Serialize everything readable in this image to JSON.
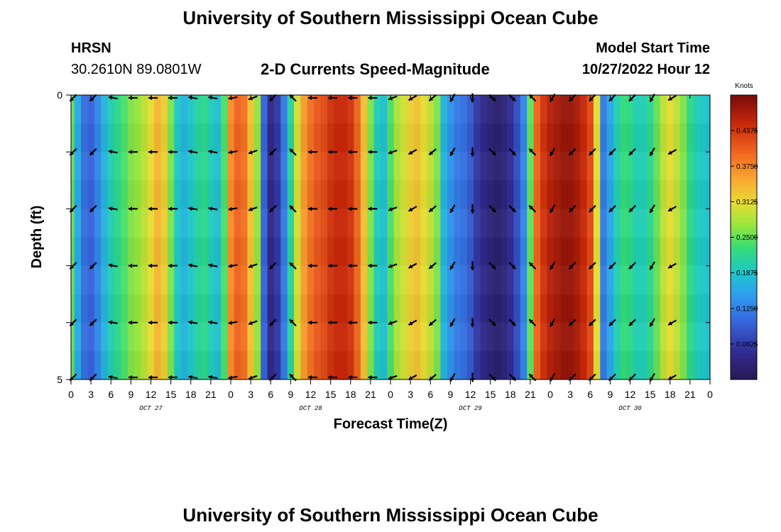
{
  "header": {
    "title": "University of Southern Mississippi Ocean Cube",
    "station": "HRSN",
    "coordinates": "30.2610N  89.0801W",
    "subtitle": "2-D Currents Speed-Magnitude",
    "model_start_label": "Model Start Time",
    "model_start_value": "10/27/2022 Hour 12"
  },
  "footer": {
    "title": "University of Southern Mississippi Ocean Cube"
  },
  "chart_data": {
    "type": "heatmap",
    "title": "2-D Currents Speed-Magnitude",
    "xlabel": "Forecast Time(Z)",
    "ylabel": "Depth (ft)",
    "units": "Knots",
    "x": [
      0,
      3,
      6,
      9,
      12,
      15,
      18,
      21,
      24,
      27,
      30,
      33,
      36,
      39,
      42,
      45,
      48,
      51,
      54,
      57,
      60,
      63,
      66,
      69,
      72,
      75,
      78,
      81,
      84,
      87,
      90,
      93,
      96
    ],
    "xtick_labels": [
      "0",
      "3",
      "6",
      "9",
      "12",
      "15",
      "18",
      "21",
      "0",
      "3",
      "6",
      "9",
      "12",
      "15",
      "18",
      "21",
      "0",
      "3",
      "6",
      "9",
      "12",
      "15",
      "18",
      "21",
      "0",
      "3",
      "6",
      "9",
      "12",
      "15",
      "18",
      "21",
      "0"
    ],
    "day_labels": [
      {
        "label": "OCT 27",
        "x_hours": 12
      },
      {
        "label": "OCT 28",
        "x_hours": 36
      },
      {
        "label": "OCT 29",
        "x_hours": 60
      },
      {
        "label": "OCT 30",
        "x_hours": 84
      }
    ],
    "ylim": [
      0,
      5
    ],
    "ytick_labels": [
      "0",
      "5"
    ],
    "colorbar": {
      "label": "Knots",
      "range": [
        0.0,
        0.5
      ],
      "ticks": [
        "0.0625",
        "0.1250",
        "0.1875",
        "0.2500",
        "0.3125",
        "0.3750",
        "0.4375"
      ]
    },
    "speed_profile_hours": [
      0,
      1,
      2,
      3,
      4,
      5,
      6,
      7,
      8,
      9,
      10,
      11,
      12,
      13,
      14,
      15,
      16,
      17,
      18,
      19,
      20,
      21,
      22,
      23,
      24,
      25,
      26,
      27,
      28,
      29,
      30,
      31,
      32,
      33,
      34,
      35,
      36,
      37,
      38,
      39,
      40,
      41,
      42,
      43,
      44,
      45,
      46,
      47,
      48,
      49,
      50,
      51,
      52,
      53,
      54,
      55,
      56,
      57,
      58,
      59,
      60,
      61,
      62,
      63,
      64,
      65,
      66,
      67,
      68,
      69,
      70,
      71,
      72,
      73,
      74,
      75,
      76,
      77,
      78,
      79,
      80,
      81,
      82,
      83,
      84,
      85,
      86,
      87,
      88,
      89,
      90,
      91,
      92,
      93,
      94,
      95,
      96
    ],
    "speed_profile_knots": [
      0.25,
      0.16,
      0.11,
      0.1,
      0.13,
      0.17,
      0.2,
      0.22,
      0.24,
      0.26,
      0.27,
      0.29,
      0.31,
      0.34,
      0.32,
      0.26,
      0.19,
      0.17,
      0.19,
      0.21,
      0.22,
      0.2,
      0.18,
      0.24,
      0.37,
      0.4,
      0.39,
      0.33,
      0.27,
      0.1,
      0.04,
      0.06,
      0.12,
      0.21,
      0.3,
      0.36,
      0.39,
      0.41,
      0.42,
      0.44,
      0.45,
      0.45,
      0.44,
      0.4,
      0.33,
      0.26,
      0.2,
      0.18,
      0.24,
      0.28,
      0.3,
      0.32,
      0.33,
      0.31,
      0.29,
      0.26,
      0.17,
      0.14,
      0.12,
      0.11,
      0.09,
      0.06,
      0.04,
      0.03,
      0.02,
      0.03,
      0.05,
      0.08,
      0.13,
      0.25,
      0.4,
      0.44,
      0.46,
      0.47,
      0.48,
      0.48,
      0.47,
      0.45,
      0.42,
      0.31,
      0.12,
      0.16,
      0.2,
      0.23,
      0.22,
      0.2,
      0.2,
      0.22,
      0.25,
      0.29,
      0.31,
      0.29,
      0.26,
      0.22,
      0.2,
      0.19,
      0.18
    ],
    "arrow_depths_ft": [
      0,
      1,
      2,
      3,
      4,
      5
    ],
    "arrow_hours": [
      0,
      3,
      6,
      9,
      12,
      15,
      18,
      21,
      24,
      27,
      30,
      33,
      36,
      39,
      42,
      45,
      48,
      51,
      54,
      57,
      60,
      63,
      66,
      69,
      72,
      75,
      78,
      81,
      84,
      87,
      90
    ],
    "arrow_direction_deg": [
      135,
      135,
      190,
      180,
      180,
      180,
      190,
      190,
      170,
      160,
      135,
      225,
      180,
      180,
      180,
      180,
      160,
      150,
      140,
      120,
      90,
      45,
      45,
      225,
      120,
      135,
      135,
      135,
      135,
      120,
      150
    ]
  }
}
